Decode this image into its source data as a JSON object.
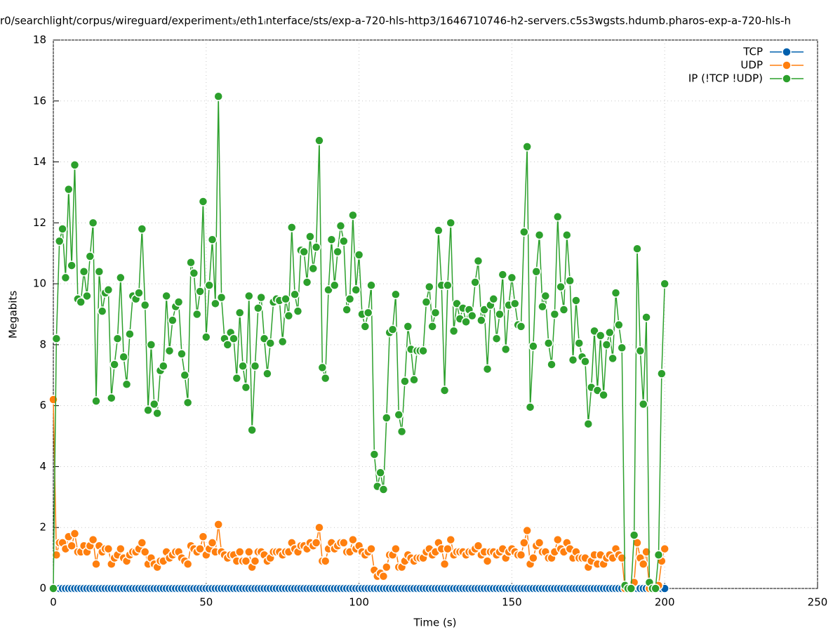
{
  "chart_data": {
    "type": "line",
    "title": "r0/searchlight/corpus/wireguard/experiment₃/eth1ᵢnterface/sts/exp-a-720-hls-http3/1646710746-h2-servers.c5s3wgsts.hdumb.pharos-exp-a-720-hls-h",
    "xlabel": "Time (s)",
    "ylabel": "Megabits",
    "xlim": [
      0,
      250
    ],
    "xticks": [
      0,
      50,
      100,
      150,
      200,
      250
    ],
    "ylim": [
      0,
      18
    ],
    "yticks": [
      0,
      2,
      4,
      6,
      8,
      10,
      12,
      14,
      16,
      18
    ],
    "grid": true,
    "legend": "top-right",
    "x": [
      0,
      1,
      2,
      3,
      4,
      5,
      6,
      7,
      8,
      9,
      10,
      11,
      12,
      13,
      14,
      15,
      16,
      17,
      18,
      19,
      20,
      21,
      22,
      23,
      24,
      25,
      26,
      27,
      28,
      29,
      30,
      31,
      32,
      33,
      34,
      35,
      36,
      37,
      38,
      39,
      40,
      41,
      42,
      43,
      44,
      45,
      46,
      47,
      48,
      49,
      50,
      51,
      52,
      53,
      54,
      55,
      56,
      57,
      58,
      59,
      60,
      61,
      62,
      63,
      64,
      65,
      66,
      67,
      68,
      69,
      70,
      71,
      72,
      73,
      74,
      75,
      76,
      77,
      78,
      79,
      80,
      81,
      82,
      83,
      84,
      85,
      86,
      87,
      88,
      89,
      90,
      91,
      92,
      93,
      94,
      95,
      96,
      97,
      98,
      99,
      100,
      101,
      102,
      103,
      104,
      105,
      106,
      107,
      108,
      109,
      110,
      111,
      112,
      113,
      114,
      115,
      116,
      117,
      118,
      119,
      120,
      121,
      122,
      123,
      124,
      125,
      126,
      127,
      128,
      129,
      130,
      131,
      132,
      133,
      134,
      135,
      136,
      137,
      138,
      139,
      140,
      141,
      142,
      143,
      144,
      145,
      146,
      147,
      148,
      149,
      150,
      151,
      152,
      153,
      154,
      155,
      156,
      157,
      158,
      159,
      160,
      161,
      162,
      163,
      164,
      165,
      166,
      167,
      168,
      169,
      170,
      171,
      172,
      173,
      174,
      175,
      176,
      177,
      178,
      179,
      180,
      181,
      182,
      183,
      184,
      185,
      186,
      187,
      188,
      189,
      190,
      191,
      192,
      193,
      194,
      195,
      196,
      197,
      198,
      199,
      200
    ],
    "series": [
      {
        "name": "TCP",
        "color": "#0060ad",
        "values": [
          0,
          0,
          0,
          0,
          0,
          0,
          0,
          0,
          0,
          0,
          0,
          0,
          0,
          0,
          0,
          0,
          0,
          0,
          0,
          0,
          0,
          0,
          0,
          0,
          0,
          0,
          0,
          0,
          0,
          0,
          0,
          0,
          0,
          0,
          0,
          0,
          0,
          0,
          0,
          0,
          0,
          0,
          0,
          0,
          0,
          0,
          0,
          0,
          0,
          0,
          0,
          0,
          0,
          0,
          0,
          0,
          0,
          0,
          0,
          0,
          0,
          0,
          0,
          0,
          0,
          0,
          0,
          0,
          0,
          0,
          0,
          0,
          0,
          0,
          0,
          0,
          0,
          0,
          0,
          0,
          0,
          0,
          0,
          0,
          0,
          0,
          0,
          0,
          0,
          0,
          0,
          0,
          0,
          0,
          0,
          0,
          0,
          0,
          0,
          0,
          0,
          0,
          0,
          0,
          0,
          0,
          0,
          0,
          0,
          0,
          0,
          0,
          0,
          0,
          0,
          0,
          0,
          0,
          0,
          0,
          0,
          0,
          0,
          0,
          0,
          0,
          0,
          0,
          0,
          0,
          0,
          0,
          0,
          0,
          0,
          0,
          0,
          0,
          0,
          0,
          0,
          0,
          0,
          0,
          0,
          0,
          0,
          0,
          0,
          0,
          0,
          0,
          0,
          0,
          0,
          0,
          0,
          0,
          0,
          0,
          0,
          0,
          0,
          0,
          0,
          0,
          0,
          0,
          0,
          0,
          0,
          0,
          0,
          0,
          0,
          0,
          0,
          0,
          0,
          0,
          0,
          0,
          0,
          0,
          0,
          0,
          0,
          0,
          0,
          0,
          0,
          0,
          0,
          0,
          0,
          0,
          0,
          0,
          0,
          0,
          0
        ]
      },
      {
        "name": "UDP",
        "color": "#ff7f0e",
        "values": [
          6.2,
          1.1,
          1.5,
          1.5,
          1.3,
          1.7,
          1.4,
          1.8,
          1.2,
          1.2,
          1.4,
          1.2,
          1.4,
          1.6,
          0.8,
          1.4,
          1.2,
          1.3,
          1.3,
          0.8,
          1.0,
          1.1,
          1.3,
          1.0,
          0.9,
          1.1,
          1.2,
          1.2,
          1.3,
          1.5,
          1.2,
          0.8,
          1.0,
          0.8,
          0.7,
          0.9,
          0.9,
          1.2,
          1.0,
          1.1,
          1.2,
          1.2,
          1.0,
          0.9,
          0.8,
          1.4,
          1.3,
          1.2,
          1.3,
          1.7,
          1.1,
          1.3,
          1.5,
          1.2,
          2.1,
          1.2,
          1.1,
          1.0,
          1.1,
          1.1,
          0.9,
          1.2,
          0.9,
          0.9,
          1.2,
          0.7,
          0.9,
          1.2,
          1.2,
          1.1,
          0.9,
          1.0,
          1.2,
          1.2,
          1.2,
          1.1,
          1.2,
          1.2,
          1.5,
          1.3,
          1.2,
          1.4,
          1.4,
          1.3,
          1.5,
          1.4,
          1.5,
          2.0,
          0.9,
          0.9,
          1.3,
          1.5,
          1.3,
          1.4,
          1.5,
          1.5,
          1.2,
          1.2,
          1.6,
          1.3,
          1.4,
          1.2,
          1.1,
          1.2,
          1.3,
          0.6,
          0.4,
          0.5,
          0.4,
          0.7,
          1.1,
          1.1,
          1.3,
          0.7,
          0.7,
          0.9,
          1.1,
          1.0,
          0.9,
          1.0,
          1.0,
          1.0,
          1.2,
          1.3,
          1.1,
          1.2,
          1.5,
          1.3,
          0.8,
          1.3,
          1.6,
          1.1,
          1.2,
          1.2,
          1.2,
          1.1,
          1.2,
          1.2,
          1.3,
          1.4,
          1.1,
          1.2,
          0.9,
          1.2,
          1.2,
          1.1,
          1.2,
          1.3,
          1.0,
          1.2,
          1.3,
          1.2,
          1.1,
          1.1,
          1.5,
          1.9,
          0.8,
          1.0,
          1.4,
          1.5,
          1.2,
          1.2,
          1.0,
          1.0,
          1.2,
          1.6,
          1.3,
          1.2,
          1.5,
          1.3,
          1.0,
          1.2,
          1.0,
          1.0,
          1.0,
          0.7,
          0.9,
          1.1,
          0.8,
          1.1,
          0.8,
          1.0,
          1.1,
          1.0,
          1.3,
          1.1,
          1.0,
          0,
          0,
          0,
          0.2,
          1.5,
          1.0,
          0.8,
          1.2,
          0,
          0,
          0,
          0.1,
          0.9,
          1.3
        ]
      },
      {
        "name": "IP (!TCP  !UDP)",
        "color": "#2ca02c",
        "values": [
          0,
          8.2,
          11.4,
          11.8,
          10.2,
          13.1,
          10.6,
          13.9,
          9.5,
          9.4,
          10.4,
          9.6,
          10.9,
          12.0,
          6.15,
          10.4,
          9.1,
          9.7,
          9.8,
          6.25,
          7.35,
          8.2,
          10.2,
          7.6,
          6.7,
          8.35,
          9.6,
          9.5,
          9.7,
          11.8,
          9.3,
          5.85,
          8.0,
          6.05,
          5.75,
          7.15,
          7.3,
          9.6,
          7.8,
          8.8,
          9.25,
          9.4,
          7.7,
          7.0,
          6.1,
          10.7,
          10.35,
          9.0,
          9.75,
          12.7,
          8.25,
          9.95,
          11.45,
          9.35,
          16.15,
          9.55,
          8.2,
          8.0,
          8.4,
          8.2,
          6.9,
          9.05,
          7.3,
          6.6,
          9.6,
          5.2,
          7.3,
          9.2,
          9.55,
          8.2,
          7.05,
          8.05,
          9.4,
          9.5,
          9.45,
          8.1,
          9.5,
          8.95,
          11.85,
          9.65,
          9.1,
          11.1,
          11.05,
          10.05,
          11.55,
          10.5,
          11.2,
          14.7,
          7.25,
          6.9,
          9.8,
          11.45,
          9.95,
          11.05,
          11.9,
          11.4,
          9.15,
          9.5,
          12.25,
          9.8,
          10.95,
          9.0,
          8.6,
          9.05,
          9.95,
          4.4,
          3.35,
          3.8,
          3.25,
          5.6,
          8.4,
          8.5,
          9.65,
          5.7,
          5.15,
          6.8,
          8.6,
          7.85,
          6.85,
          7.8,
          7.8,
          7.8,
          9.4,
          9.9,
          8.6,
          9.05,
          11.75,
          9.95,
          6.5,
          9.95,
          12.0,
          8.45,
          9.35,
          8.85,
          9.2,
          8.75,
          9.15,
          8.95,
          10.05,
          10.75,
          8.8,
          9.15,
          7.2,
          9.3,
          9.5,
          8.2,
          9.0,
          10.3,
          7.85,
          9.3,
          10.2,
          9.35,
          8.65,
          8.6,
          11.7,
          14.5,
          5.95,
          7.95,
          10.4,
          11.6,
          9.25,
          9.6,
          8.05,
          7.35,
          9.0,
          12.2,
          9.9,
          9.15,
          11.6,
          10.1,
          7.5,
          9.45,
          8.05,
          7.6,
          7.45,
          5.4,
          6.6,
          8.45,
          6.5,
          8.3,
          6.35,
          8.0,
          8.4,
          7.55,
          9.7,
          8.65,
          7.9,
          0.1,
          0,
          0,
          1.75,
          11.15,
          7.8,
          6.05,
          8.9,
          0.2,
          0,
          0,
          1.1,
          7.05,
          10.0
        ]
      }
    ]
  }
}
